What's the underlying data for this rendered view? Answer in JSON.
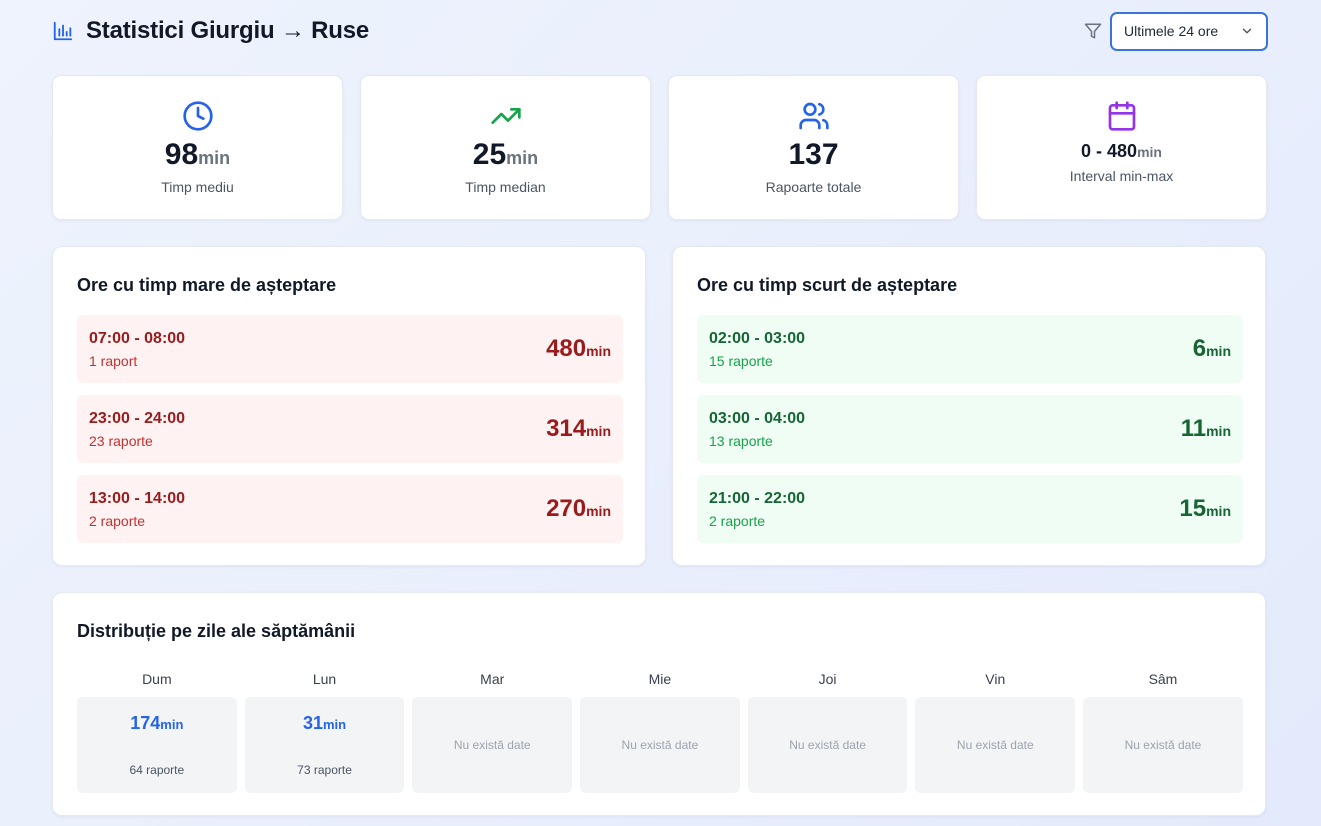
{
  "header": {
    "title": "Statistici Giurgiu → Ruse",
    "title_icon": "bar-chart-icon",
    "filter_icon": "filter-icon",
    "range_select": {
      "value": "Ultimele 24 ore"
    }
  },
  "colors": {
    "accent": "#3b73d9",
    "clock": "#2563eb",
    "trend": "#16a34a",
    "users": "#2563eb",
    "calendar": "#9333ea",
    "red_bg": "#fef2f2",
    "green_bg": "#f0fdf4"
  },
  "stats": [
    {
      "icon": "clock-icon",
      "value": "98",
      "unit": "min",
      "label": "Timp mediu"
    },
    {
      "icon": "trending-up-icon",
      "value": "25",
      "unit": "min",
      "label": "Timp median"
    },
    {
      "icon": "users-icon",
      "value": "137",
      "unit": "",
      "label": "Rapoarte totale"
    },
    {
      "icon": "calendar-icon",
      "value": "0 - 480",
      "unit": "min",
      "label": "Interval min-max"
    }
  ],
  "long_waits": {
    "title": "Ore cu timp mare de așteptare",
    "items": [
      {
        "range": "07:00 - 08:00",
        "reports": "1 raport",
        "value": "480",
        "unit": "min"
      },
      {
        "range": "23:00 - 24:00",
        "reports": "23 raporte",
        "value": "314",
        "unit": "min"
      },
      {
        "range": "13:00 - 14:00",
        "reports": "2 raporte",
        "value": "270",
        "unit": "min"
      }
    ]
  },
  "short_waits": {
    "title": "Ore cu timp scurt de așteptare",
    "items": [
      {
        "range": "02:00 - 03:00",
        "reports": "15 raporte",
        "value": "6",
        "unit": "min"
      },
      {
        "range": "03:00 - 04:00",
        "reports": "13 raporte",
        "value": "11",
        "unit": "min"
      },
      {
        "range": "21:00 - 22:00",
        "reports": "2 raporte",
        "value": "15",
        "unit": "min"
      }
    ]
  },
  "weekdays": {
    "title": "Distribuție pe zile ale săptămânii",
    "days": [
      {
        "name": "Dum",
        "value": "174",
        "unit": "min",
        "reports": "64 raporte",
        "empty": ""
      },
      {
        "name": "Lun",
        "value": "31",
        "unit": "min",
        "reports": "73 raporte",
        "empty": ""
      },
      {
        "name": "Mar",
        "value": "",
        "unit": "",
        "reports": "",
        "empty": "Nu există date"
      },
      {
        "name": "Mie",
        "value": "",
        "unit": "",
        "reports": "",
        "empty": "Nu există date"
      },
      {
        "name": "Joi",
        "value": "",
        "unit": "",
        "reports": "",
        "empty": "Nu există date"
      },
      {
        "name": "Vin",
        "value": "",
        "unit": "",
        "reports": "",
        "empty": "Nu există date"
      },
      {
        "name": "Sâm",
        "value": "",
        "unit": "",
        "reports": "",
        "empty": "Nu există date"
      }
    ]
  }
}
